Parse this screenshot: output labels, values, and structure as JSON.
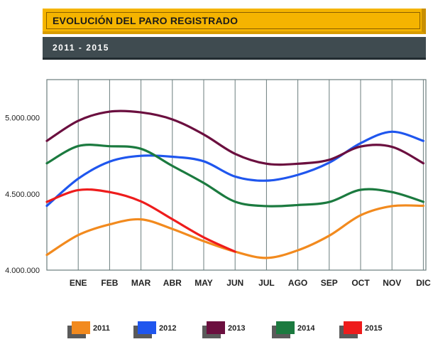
{
  "header": {
    "title": "EVOLUCIÓN DEL PARO REGISTRADO",
    "subtitle": "2011  -  2015"
  },
  "colors": {
    "banner": "#f5b400",
    "subbar": "#3f4b50",
    "grid": "#6b7d7d"
  },
  "chart_data": {
    "type": "line",
    "categories": [
      "",
      "ENE",
      "FEB",
      "MAR",
      "ABR",
      "MAY",
      "JUN",
      "JUL",
      "AGO",
      "SEP",
      "OCT",
      "NOV",
      "DIC"
    ],
    "ylim": [
      4000000,
      5250000
    ],
    "yticks": [
      4000000,
      4500000,
      5000000
    ],
    "ytick_labels": [
      "4.000.000",
      "4.500.000",
      "5.000.000"
    ],
    "grid": "vertical",
    "legend_position": "bottom",
    "title": "",
    "xlabel": "",
    "ylabel": "",
    "series": [
      {
        "name": "2011",
        "color": "#f28a1e",
        "values": [
          4100000,
          4230000,
          4300000,
          4333000,
          4270000,
          4190000,
          4121000,
          4080000,
          4130000,
          4226000,
          4360000,
          4420000,
          4422000
        ]
      },
      {
        "name": "2012",
        "color": "#1f56ee",
        "values": [
          4422000,
          4600000,
          4712000,
          4750000,
          4744000,
          4714000,
          4614000,
          4587000,
          4625000,
          4705000,
          4833000,
          4908000,
          4848000
        ]
      },
      {
        "name": "2013",
        "color": "#6b0f3f",
        "values": [
          4848000,
          4980000,
          5040000,
          5035000,
          4989000,
          4890000,
          4763000,
          4698000,
          4698000,
          4724000,
          4811000,
          4809000,
          4701000
        ]
      },
      {
        "name": "2014",
        "color": "#1b7a3f",
        "values": [
          4701000,
          4814000,
          4813000,
          4796000,
          4684000,
          4572000,
          4449000,
          4420000,
          4427000,
          4447000,
          4527000,
          4512000,
          4448000
        ]
      },
      {
        "name": "2015",
        "color": "#ee1c1c",
        "values": [
          4448000,
          4525000,
          4512000,
          4451000,
          4334000,
          4215000,
          4121000,
          null,
          null,
          null,
          null,
          null,
          null
        ]
      }
    ]
  }
}
